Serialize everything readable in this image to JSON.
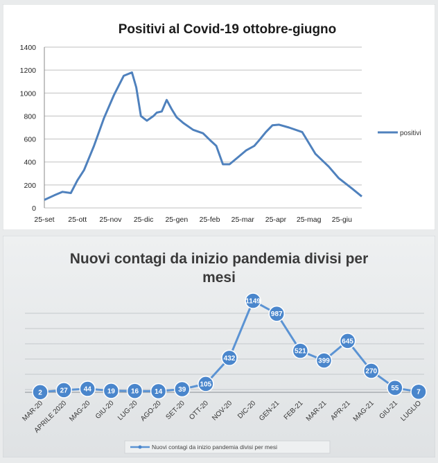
{
  "colors": {
    "line1": "#4f81bd",
    "line2": "#5b93d3",
    "marker_fill": "#4a86cc",
    "marker_stroke": "#ffffff",
    "grid": "#bfbfbf",
    "panel1_bg": "#ffffff",
    "panel2_bg": "#e6e8ea"
  },
  "chart_data": [
    {
      "type": "line",
      "title": "Positivi al Covid-19 ottobre-giugno",
      "xlabel": "",
      "ylabel": "",
      "ylim": [
        0,
        1400
      ],
      "y_ticks": [
        "0",
        "200",
        "400",
        "600",
        "800",
        "1000",
        "1200",
        "1400"
      ],
      "x_tick_labels": [
        "25-set",
        "25-ott",
        "25-nov",
        "25-dic",
        "25-gen",
        "25-feb",
        "25-mar",
        "25-apr",
        "25-mag",
        "25-giu"
      ],
      "grid": true,
      "legend": "right",
      "series": [
        {
          "name": "positivi",
          "x": [
            0,
            0.3,
            0.55,
            0.8,
            1.0,
            1.2,
            1.5,
            1.8,
            2.1,
            2.4,
            2.65,
            2.78,
            2.92,
            3.1,
            3.3,
            3.4,
            3.55,
            3.7,
            3.85,
            4.0,
            4.2,
            4.5,
            4.8,
            5.05,
            5.2,
            5.4,
            5.6,
            5.85,
            6.1,
            6.35,
            6.5,
            6.7,
            6.9,
            7.1,
            7.4,
            7.8,
            8.2,
            8.6,
            8.9,
            9.3,
            9.6
          ],
          "values": [
            70,
            110,
            140,
            130,
            240,
            330,
            540,
            780,
            980,
            1150,
            1180,
            1050,
            800,
            760,
            800,
            830,
            840,
            940,
            860,
            790,
            740,
            680,
            650,
            580,
            540,
            380,
            380,
            440,
            500,
            540,
            590,
            660,
            720,
            725,
            700,
            660,
            470,
            360,
            260,
            170,
            100
          ]
        }
      ]
    },
    {
      "type": "line",
      "title": "Nuovi contagi da inizio pandemia divisi per mesi",
      "xlabel": "",
      "ylabel": "",
      "grid": true,
      "legend": "bottom",
      "categories": [
        "MAR-20",
        "APRILE 2020",
        "MAG-20",
        "GIU-20",
        "LUG-20",
        "AGO-20",
        "SET-20",
        "OTT-20",
        "NOV-20",
        "DIC-20",
        "GEN-21",
        "FEB-21",
        "MAR-21",
        "APR-21",
        "MAG-21",
        "GIU-21",
        "LUGLIO"
      ],
      "series": [
        {
          "name": "Nuovi contagi da inizio pandemia divisi per mesi",
          "values": [
            2,
            27,
            44,
            19,
            16,
            14,
            39,
            105,
            432,
            1149,
            987,
            521,
            399,
            645,
            270,
            55,
            7
          ]
        }
      ]
    }
  ]
}
